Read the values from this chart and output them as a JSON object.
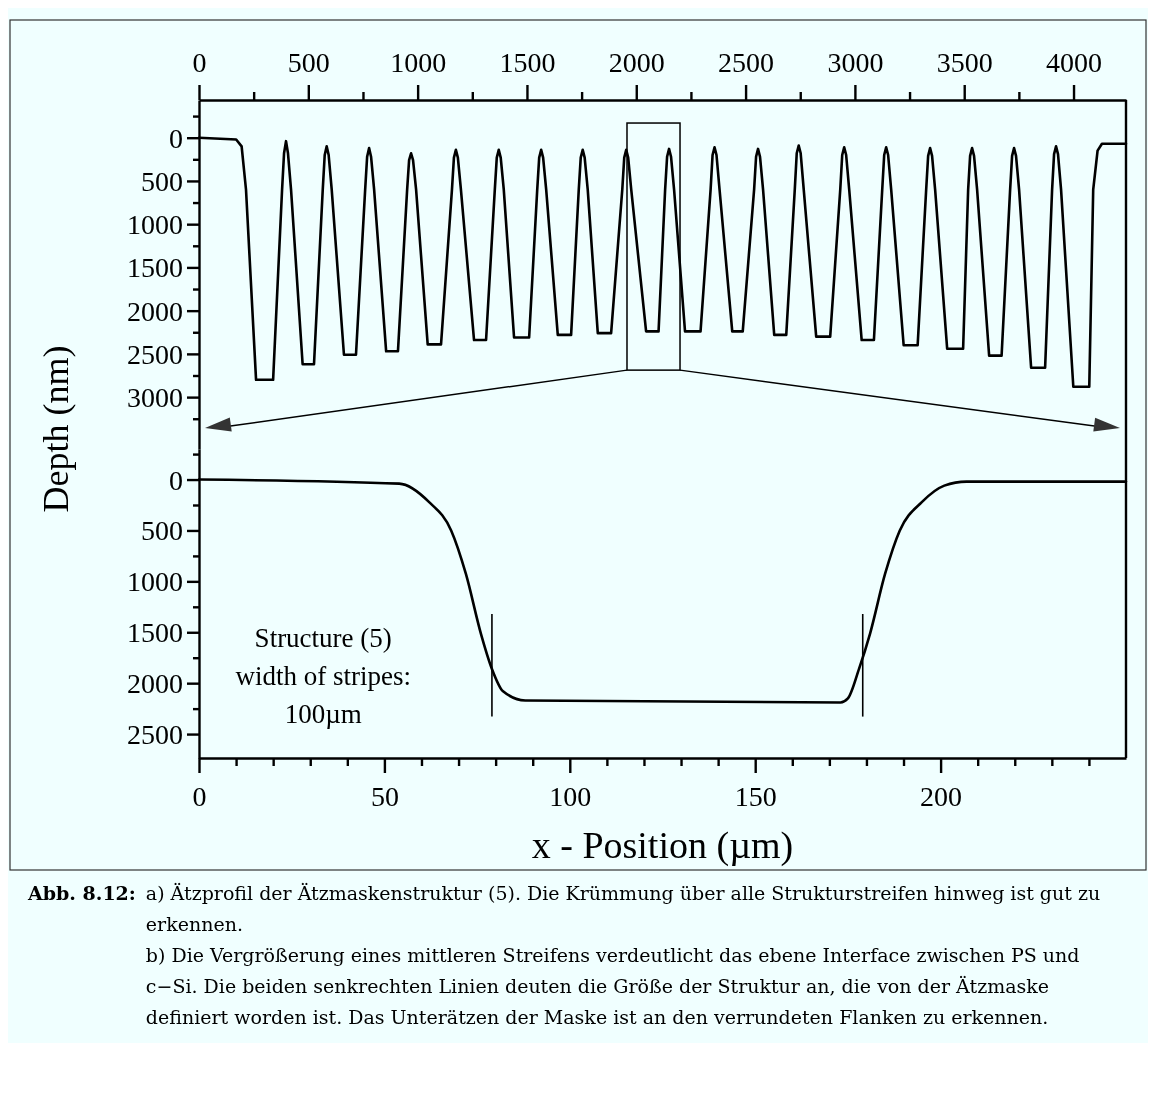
{
  "chart_data": [
    {
      "type": "line",
      "ylabel": "Depth (nm)",
      "x": [
        0,
        170,
        195,
        215,
        261,
        339,
        380,
        389,
        398,
        407,
        421,
        474,
        526,
        566,
        575,
        584,
        593,
        607,
        663,
        718,
        760,
        769,
        778,
        787,
        801,
        856,
        910,
        952,
        961,
        970,
        979,
        993,
        1046,
        1107,
        1157,
        1166,
        1175,
        1184,
        1198,
        1258,
        1313,
        1353,
        1362,
        1371,
        1380,
        1394,
        1441,
        1510,
        1547,
        1556,
        1565,
        1574,
        1588,
        1641,
        1702,
        1737,
        1746,
        1755,
        1764,
        1778,
        1824,
        1885,
        1936,
        1945,
        1954,
        1963,
        1977,
        2045,
        2102,
        2132,
        2141,
        2150,
        2159,
        2173,
        2223,
        2294,
        2340,
        2349,
        2358,
        2367,
        2381,
        2439,
        2487,
        2539,
        2548,
        2557,
        2566,
        2580,
        2631,
        2686,
        2725,
        2734,
        2743,
        2752,
        2766,
        2823,
        2887,
        2933,
        2942,
        2951,
        2960,
        2974,
        3031,
        3087,
        3125,
        3134,
        3143,
        3152,
        3166,
        3223,
        3287,
        3326,
        3335,
        3344,
        3353,
        3367,
        3422,
        3495,
        3518,
        3527,
        3536,
        3545,
        3559,
        3614,
        3671,
        3710,
        3719,
        3728,
        3737,
        3751,
        3806,
        3870,
        3902,
        3911,
        3920,
        3929,
        3943,
        3999,
        4072,
        4090,
        4110,
        4130,
        4240
      ],
      "series": [
        {
          "color": "#000000",
          "values": [
            0,
            20,
            100,
            600,
            2800,
            2800,
            600,
            180,
            40,
            180,
            600,
            2620,
            2620,
            600,
            200,
            100,
            200,
            600,
            2510,
            2510,
            600,
            220,
            120,
            220,
            600,
            2470,
            2470,
            600,
            260,
            180,
            260,
            600,
            2390,
            2390,
            600,
            230,
            140,
            230,
            600,
            2340,
            2340,
            600,
            230,
            140,
            230,
            600,
            2310,
            2310,
            600,
            230,
            140,
            230,
            600,
            2280,
            2280,
            600,
            230,
            140,
            230,
            600,
            2260,
            2260,
            600,
            230,
            140,
            230,
            600,
            2240,
            2240,
            600,
            220,
            130,
            220,
            600,
            2240,
            2240,
            600,
            200,
            110,
            200,
            600,
            2240,
            2240,
            600,
            220,
            130,
            220,
            600,
            2280,
            2280,
            600,
            180,
            90,
            180,
            600,
            2300,
            2300,
            600,
            200,
            110,
            200,
            600,
            2340,
            2340,
            600,
            200,
            110,
            200,
            600,
            2400,
            2400,
            600,
            210,
            120,
            210,
            600,
            2440,
            2440,
            600,
            210,
            120,
            210,
            600,
            2520,
            2520,
            600,
            210,
            120,
            210,
            600,
            2660,
            2660,
            600,
            190,
            100,
            190,
            600,
            2880,
            2880,
            600,
            150,
            70,
            70
          ]
        }
      ],
      "xlim": [
        0,
        4240
      ],
      "xticks": [
        0,
        {
          "value": 250,
          "label": null
        },
        500,
        {
          "value": 750,
          "label": null
        },
        1000,
        {
          "value": 1250,
          "label": null
        },
        1500,
        {
          "value": 1750,
          "label": null
        },
        2000,
        {
          "value": 2250,
          "label": null
        },
        2500,
        {
          "value": 2750,
          "label": null
        },
        3000,
        {
          "value": 3250,
          "label": null
        },
        3500,
        {
          "value": 3750,
          "label": null
        },
        4000
      ],
      "ylim": [
        3600,
        -436
      ],
      "yticks": [
        {
          "value": -250,
          "label": null
        },
        0,
        {
          "value": 250,
          "label": null
        },
        500,
        {
          "value": 750,
          "label": null
        },
        1000,
        {
          "value": 1250,
          "label": null
        },
        1500,
        {
          "value": 1750,
          "label": null
        },
        2000,
        {
          "value": 2250,
          "label": null
        },
        2500,
        {
          "value": 2750,
          "label": null
        },
        3000,
        {
          "value": 3250,
          "label": null
        }
      ]
    },
    {
      "type": "line",
      "xlabel": "x - Position (µm)",
      "x": [
        0,
        54,
        62,
        68,
        72,
        76,
        79,
        82,
        88,
        173,
        175,
        178,
        181,
        185,
        189,
        195,
        201,
        207,
        250
      ],
      "series": [
        {
          "color": "#000000",
          "values": [
            0,
            40,
            220,
            500,
            930,
            1510,
            1860,
            2080,
            2170,
            2190,
            2150,
            1860,
            1510,
            930,
            500,
            220,
            60,
            20,
            20
          ]
        }
      ],
      "xlim": [
        0,
        250
      ],
      "xticks": [
        0,
        {
          "value": 10,
          "label": null
        },
        {
          "value": 20,
          "label": null
        },
        {
          "value": 30,
          "label": null
        },
        {
          "value": 40,
          "label": null
        },
        50,
        {
          "value": 60,
          "label": null
        },
        {
          "value": 70,
          "label": null
        },
        {
          "value": 80,
          "label": null
        },
        {
          "value": 90,
          "label": null
        },
        100,
        {
          "value": 110,
          "label": null
        },
        {
          "value": 120,
          "label": null
        },
        {
          "value": 130,
          "label": null
        },
        {
          "value": 140,
          "label": null
        },
        150,
        {
          "value": 160,
          "label": null
        },
        {
          "value": 170,
          "label": null
        },
        {
          "value": 180,
          "label": null
        },
        {
          "value": 190,
          "label": null
        },
        200,
        {
          "value": 210,
          "label": null
        },
        {
          "value": 220,
          "label": null
        },
        {
          "value": 230,
          "label": null
        },
        {
          "value": 240,
          "label": null
        }
      ],
      "ylim": [
        2735,
        -300
      ],
      "yticks": [
        {
          "value": -250,
          "label": null
        },
        0,
        {
          "value": 250,
          "label": null
        },
        500,
        {
          "value": 750,
          "label": null
        },
        1000,
        {
          "value": 1250,
          "label": null
        },
        1500,
        {
          "value": 1750,
          "label": null
        },
        2000,
        {
          "value": 2250,
          "label": null
        },
        2500
      ],
      "ref_lines": [
        {
          "axis": "x",
          "value": 79,
          "color": "#000000"
        },
        {
          "axis": "x",
          "value": 179,
          "color": "#000000"
        }
      ],
      "annotations": [
        "Structure (5)\nwidth of stripes:\n100µm",
        "Abb. 8.12:",
        "a) Ätzprofil der Ätzmaskenstruktur (5). Die Krümmung über alle Strukturstreifen hinweg ist gut zu erkennen.",
        "b) Die Vergrößerung eines mittleren Streifens verdeutlicht das ebene Interface zwischen PS und c−Si. Die beiden senkrechten Linien deuten die Größe der Struktur an, die von der Ätzmaske definiert worden ist. Das Unterätzen der Maske ist an den verrundeten Flanken zu erkennen."
      ]
    }
  ]
}
